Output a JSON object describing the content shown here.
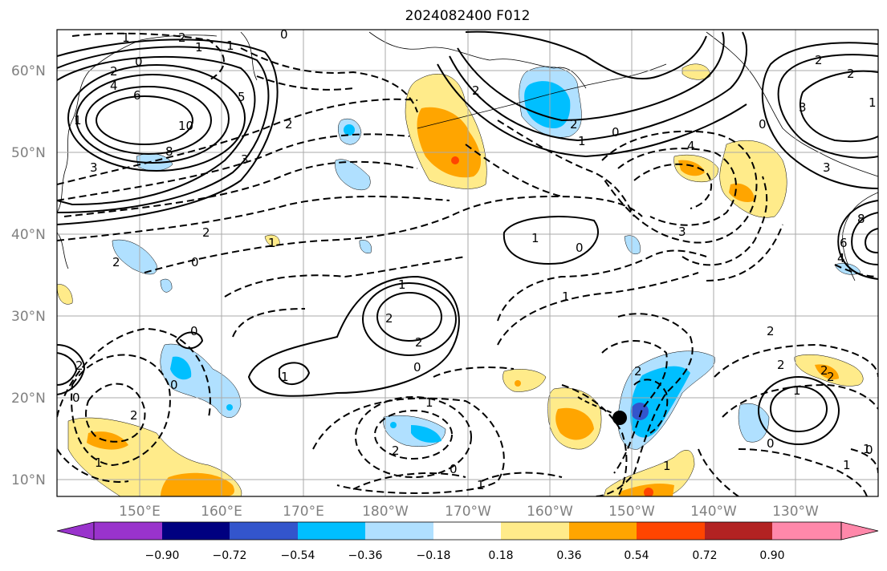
{
  "title": "2024082400 F012",
  "lat_labels": [
    "60°N",
    "50°N",
    "40°N",
    "30°N",
    "20°N",
    "10°N"
  ],
  "lon_labels": [
    "150°E",
    "160°E",
    "170°E",
    "180°W",
    "170°W",
    "160°W",
    "150°W",
    "140°W",
    "130°W"
  ],
  "colorbar": {
    "tick_labels": [
      "−0.90",
      "−0.72",
      "−0.54",
      "−0.36",
      "−0.18",
      "0.18",
      "0.36",
      "0.54",
      "0.72",
      "0.90"
    ],
    "colors": {
      "under": "#9933CC",
      "bins": [
        "#9933CC",
        "#000080",
        "#3355CC",
        "#00BFFF",
        "#B0E0FF",
        "#FFFFFF",
        "#FFEB8A",
        "#FFA500",
        "#FF4500",
        "#B22222",
        "#FF88AA"
      ],
      "over": "#FF88AA"
    }
  },
  "contour_labels": [
    "1",
    "2",
    "0",
    "1",
    "2",
    "1",
    "0",
    "4",
    "6",
    "10",
    "8",
    "3",
    "5",
    "2",
    "3",
    "2",
    "1",
    "2",
    "0",
    "2",
    "1",
    "1",
    "0",
    "1",
    "2",
    "2",
    "0",
    "1",
    "0",
    "0",
    "2",
    "1",
    "0",
    "2",
    "4",
    "3",
    "3",
    "1",
    "0",
    "2",
    "1",
    "2",
    "8",
    "6",
    "4",
    "2",
    "3",
    "2",
    "1",
    "1",
    "2",
    "1",
    "0",
    "1",
    "2",
    "0",
    "1",
    "2",
    "2",
    "0",
    "2",
    "0",
    "1",
    "1"
  ],
  "marker": {
    "label": "storm-center",
    "color": "#000000"
  }
}
